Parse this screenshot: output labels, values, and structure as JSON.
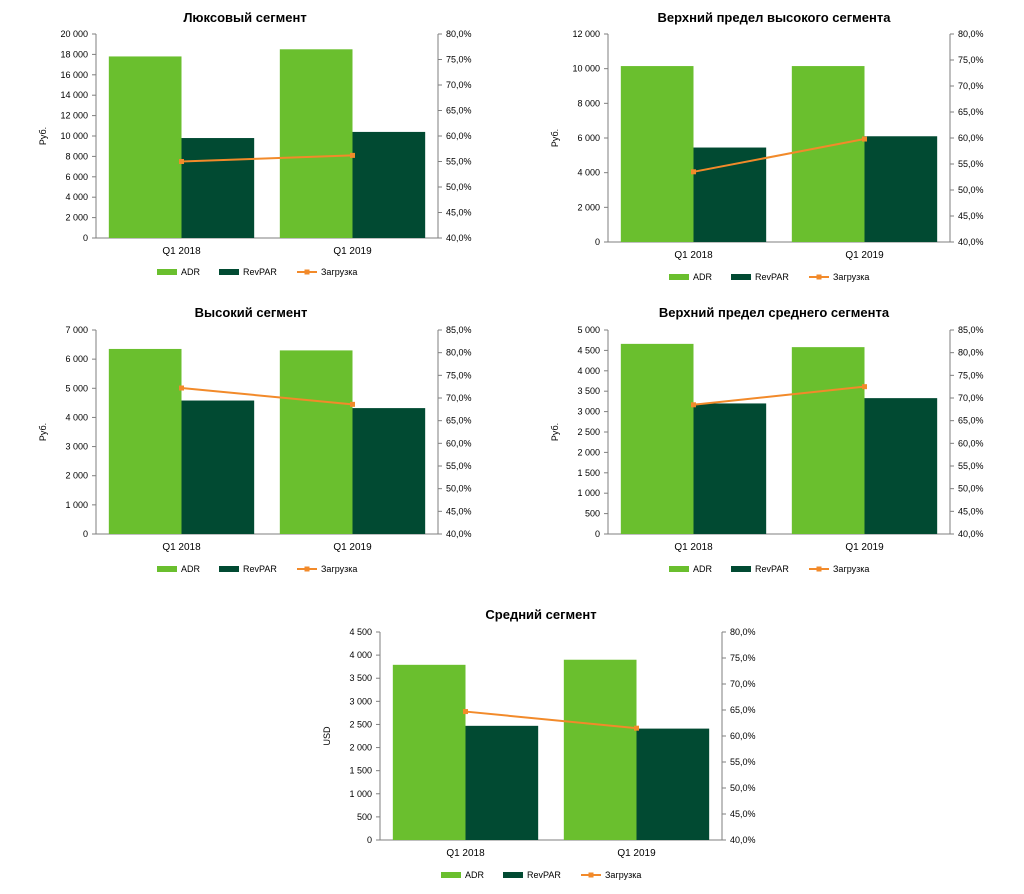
{
  "colors": {
    "adr": "#6ABF2E",
    "revpar": "#014A32",
    "load": "#F28A2A",
    "axis": "#7f7f7f"
  },
  "legend": {
    "adr": "ADR",
    "revpar": "RevPAR",
    "load": "Загрузка"
  },
  "chart_data": [
    {
      "type": "bar",
      "title": "Люксовый сегмент",
      "ylabel": "Руб.",
      "categories": [
        "Q1 2018",
        "Q1 2019"
      ],
      "ylim": [
        0,
        20000
      ],
      "ystep": 2000,
      "y2lim": [
        40,
        80
      ],
      "y2step": 5,
      "left_ticks": [
        "0",
        "2 000",
        "4 000",
        "6 000",
        "8 000",
        "10 000",
        "12 000",
        "14 000",
        "16 000",
        "18 000",
        "20 000"
      ],
      "right_ticks": [
        "40,0%",
        "45,0%",
        "50,0%",
        "55,0%",
        "60,0%",
        "65,0%",
        "70,0%",
        "75,0%",
        "80,0%"
      ],
      "series": [
        {
          "name": "ADR",
          "values": [
            17800,
            18500
          ]
        },
        {
          "name": "RevPAR",
          "values": [
            9800,
            10400
          ]
        },
        {
          "name": "Загрузка",
          "values": [
            55.0,
            56.2
          ],
          "axis": "right",
          "kind": "line"
        }
      ]
    },
    {
      "type": "bar",
      "title": "Верхний предел высокого сегмента",
      "ylabel": "Руб.",
      "categories": [
        "Q1 2018",
        "Q1 2019"
      ],
      "ylim": [
        0,
        12000
      ],
      "ystep": 2000,
      "y2lim": [
        40,
        80
      ],
      "y2step": 5,
      "left_ticks": [
        "0",
        "2 000",
        "4 000",
        "6 000",
        "8 000",
        "10 000",
        "12 000"
      ],
      "right_ticks": [
        "40,0%",
        "45,0%",
        "50,0%",
        "55,0%",
        "60,0%",
        "65,0%",
        "70,0%",
        "75,0%",
        "80,0%"
      ],
      "series": [
        {
          "name": "ADR",
          "values": [
            10150,
            10150
          ]
        },
        {
          "name": "RevPAR",
          "values": [
            5450,
            6100
          ]
        },
        {
          "name": "Загрузка",
          "values": [
            53.5,
            59.8
          ],
          "axis": "right",
          "kind": "line"
        }
      ]
    },
    {
      "type": "bar",
      "title": "Высокий сегмент",
      "ylabel": "Руб.",
      "categories": [
        "Q1 2018",
        "Q1 2019"
      ],
      "ylim": [
        0,
        7000
      ],
      "ystep": 1000,
      "y2lim": [
        40,
        85
      ],
      "y2step": 5,
      "left_ticks": [
        "0",
        "1 000",
        "2 000",
        "3 000",
        "4 000",
        "5 000",
        "6 000",
        "7 000"
      ],
      "right_ticks": [
        "40,0%",
        "45,0%",
        "50,0%",
        "55,0%",
        "60,0%",
        "65,0%",
        "70,0%",
        "75,0%",
        "80,0%",
        "85,0%"
      ],
      "series": [
        {
          "name": "ADR",
          "values": [
            6350,
            6300
          ]
        },
        {
          "name": "RevPAR",
          "values": [
            4580,
            4320
          ]
        },
        {
          "name": "Загрузка",
          "values": [
            72.2,
            68.6
          ],
          "axis": "right",
          "kind": "line"
        }
      ]
    },
    {
      "type": "bar",
      "title": "Верхний предел среднего сегмента",
      "ylabel": "Руб.",
      "categories": [
        "Q1 2018",
        "Q1 2019"
      ],
      "ylim": [
        0,
        5000
      ],
      "ystep": 500,
      "y2lim": [
        40,
        85
      ],
      "y2step": 5,
      "left_ticks": [
        "0",
        "500",
        "1 000",
        "1 500",
        "2 000",
        "2 500",
        "3 000",
        "3 500",
        "4 000",
        "4 500",
        "5 000"
      ],
      "right_ticks": [
        "40,0%",
        "45,0%",
        "50,0%",
        "55,0%",
        "60,0%",
        "65,0%",
        "70,0%",
        "75,0%",
        "80,0%",
        "85,0%"
      ],
      "series": [
        {
          "name": "ADR",
          "values": [
            4660,
            4580
          ]
        },
        {
          "name": "RevPAR",
          "values": [
            3200,
            3330
          ]
        },
        {
          "name": "Загрузка",
          "values": [
            68.5,
            72.5
          ],
          "axis": "right",
          "kind": "line"
        }
      ]
    },
    {
      "type": "bar",
      "title": "Средний сегмент",
      "ylabel": "USD",
      "categories": [
        "Q1 2018",
        "Q1 2019"
      ],
      "ylim": [
        0,
        4500
      ],
      "ystep": 500,
      "y2lim": [
        40,
        80
      ],
      "y2step": 5,
      "left_ticks": [
        "0",
        "500",
        "1 000",
        "1 500",
        "2 000",
        "2 500",
        "3 000",
        "3 500",
        "4 000",
        "4 500"
      ],
      "right_ticks": [
        "40,0%",
        "45,0%",
        "50,0%",
        "55,0%",
        "60,0%",
        "65,0%",
        "70,0%",
        "75,0%",
        "80,0%"
      ],
      "series": [
        {
          "name": "ADR",
          "values": [
            3790,
            3900
          ]
        },
        {
          "name": "RevPAR",
          "values": [
            2470,
            2410
          ]
        },
        {
          "name": "Загрузка",
          "values": [
            64.7,
            61.5
          ],
          "axis": "right",
          "kind": "line"
        }
      ]
    }
  ]
}
